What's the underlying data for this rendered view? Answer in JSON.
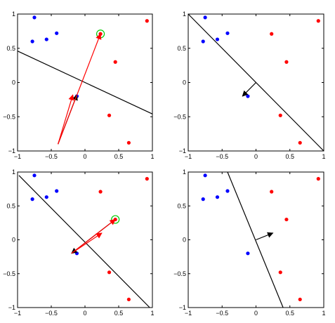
{
  "colors": {
    "class_a": "#0000ff",
    "class_b": "#ff0000",
    "line": "#000000",
    "highlight": "#00cc00",
    "red_arrow": "#ff0000",
    "black_arrow": "#000000"
  },
  "chart_data": [
    {
      "type": "scatter",
      "xlim": [
        -1,
        1
      ],
      "ylim": [
        -1,
        1
      ],
      "xticks": [
        -1,
        -0.5,
        0,
        0.5,
        1
      ],
      "yticks": [
        -1,
        -0.5,
        0,
        0.5,
        1
      ],
      "xtick_labels": [
        "−1",
        "−0.5",
        "0",
        "0.5",
        "1"
      ],
      "ytick_labels": [
        "−1",
        "−0.5",
        "0",
        "0.5",
        "1"
      ],
      "series": [
        {
          "values": [
            [
              -0.75,
              0.95
            ],
            [
              -0.78,
              0.6
            ],
            [
              -0.57,
              0.63
            ],
            [
              -0.42,
              0.72
            ],
            [
              -0.12,
              -0.2
            ]
          ]
        },
        {
          "values": [
            [
              0.92,
              0.9
            ],
            [
              0.23,
              0.71
            ],
            [
              0.45,
              0.3
            ],
            [
              0.36,
              -0.48
            ],
            [
              0.65,
              -0.88
            ]
          ]
        }
      ],
      "decision_line": [
        [
          -1,
          0.46
        ],
        [
          1,
          -0.46
        ]
      ],
      "highlight_point": [
        0.23,
        0.71
      ],
      "arrows": [
        {
          "from": [
            -0.4,
            -0.9
          ],
          "to": [
            -0.12,
            -0.18
          ],
          "color": "black"
        },
        {
          "from": [
            -0.4,
            -0.9
          ],
          "to": [
            -0.18,
            -0.18
          ],
          "color": "red"
        },
        {
          "from": [
            -0.4,
            -0.9
          ],
          "to": [
            0.23,
            0.71
          ],
          "color": "red"
        }
      ]
    },
    {
      "type": "scatter",
      "xlim": [
        -1,
        1
      ],
      "ylim": [
        -1,
        1
      ],
      "xticks": [
        -1,
        -0.5,
        0,
        0.5,
        1
      ],
      "yticks": [
        -1,
        -0.5,
        0,
        0.5,
        1
      ],
      "xtick_labels": [
        "−1",
        "−0.5",
        "0",
        "0.5",
        "1"
      ],
      "ytick_labels": [
        "−1",
        "−0.5",
        "0",
        "0.5",
        "1"
      ],
      "series": [
        {
          "values": [
            [
              -0.75,
              0.95
            ],
            [
              -0.78,
              0.6
            ],
            [
              -0.57,
              0.63
            ],
            [
              -0.42,
              0.72
            ],
            [
              -0.12,
              -0.2
            ]
          ]
        },
        {
          "values": [
            [
              0.92,
              0.9
            ],
            [
              0.23,
              0.71
            ],
            [
              0.45,
              0.3
            ],
            [
              0.36,
              -0.48
            ],
            [
              0.65,
              -0.88
            ]
          ]
        }
      ],
      "decision_line": [
        [
          -1,
          1
        ],
        [
          1,
          -1
        ]
      ],
      "arrows": [
        {
          "from": [
            0,
            0
          ],
          "to": [
            -0.2,
            -0.2
          ],
          "color": "black"
        }
      ]
    },
    {
      "type": "scatter",
      "xlim": [
        -1,
        1
      ],
      "ylim": [
        -1,
        1
      ],
      "xticks": [
        -1,
        -0.5,
        0,
        0.5,
        1
      ],
      "yticks": [
        -1,
        -0.5,
        0,
        0.5,
        1
      ],
      "xtick_labels": [
        "−1",
        "−0.5",
        "0",
        "0.5",
        "1"
      ],
      "ytick_labels": [
        "−1",
        "−0.5",
        "0",
        "0.5",
        "1"
      ],
      "series": [
        {
          "values": [
            [
              -0.75,
              0.95
            ],
            [
              -0.78,
              0.6
            ],
            [
              -0.57,
              0.63
            ],
            [
              -0.42,
              0.72
            ],
            [
              -0.12,
              -0.2
            ]
          ]
        },
        {
          "values": [
            [
              0.92,
              0.9
            ],
            [
              0.23,
              0.71
            ],
            [
              0.45,
              0.3
            ],
            [
              0.36,
              -0.48
            ],
            [
              0.65,
              -0.88
            ]
          ]
        }
      ],
      "decision_line": [
        [
          -0.98,
          0.95
        ],
        [
          0.96,
          -1
        ]
      ],
      "highlight_point": [
        0.45,
        0.3
      ],
      "arrows": [
        {
          "from": [
            0.45,
            0.3
          ],
          "to": [
            -0.2,
            -0.2
          ],
          "color": "black"
        },
        {
          "from": [
            -0.2,
            -0.2
          ],
          "to": [
            0.45,
            0.3
          ],
          "color": "red"
        },
        {
          "from": [
            -0.2,
            -0.2
          ],
          "to": [
            0.25,
            0.1
          ],
          "color": "red"
        }
      ]
    },
    {
      "type": "scatter",
      "xlim": [
        -1,
        1
      ],
      "ylim": [
        -1,
        1
      ],
      "xticks": [
        -1,
        -0.5,
        0,
        0.5,
        1
      ],
      "yticks": [
        -1,
        -0.5,
        0,
        0.5,
        1
      ],
      "xtick_labels": [
        "−1",
        "−0.5",
        "0",
        "0.5",
        "1"
      ],
      "ytick_labels": [
        "−1",
        "−0.5",
        "0",
        "0.5",
        "1"
      ],
      "series": [
        {
          "values": [
            [
              -0.75,
              0.95
            ],
            [
              -0.78,
              0.6
            ],
            [
              -0.57,
              0.63
            ],
            [
              -0.42,
              0.72
            ],
            [
              -0.12,
              -0.2
            ]
          ]
        },
        {
          "values": [
            [
              0.92,
              0.9
            ],
            [
              0.23,
              0.71
            ],
            [
              0.45,
              0.3
            ],
            [
              0.36,
              -0.48
            ],
            [
              0.65,
              -0.88
            ]
          ]
        }
      ],
      "decision_line": [
        [
          -0.42,
          1
        ],
        [
          0.4,
          -1
        ]
      ],
      "arrows": [
        {
          "from": [
            0,
            0
          ],
          "to": [
            0.25,
            0.1
          ],
          "color": "black"
        }
      ]
    }
  ]
}
